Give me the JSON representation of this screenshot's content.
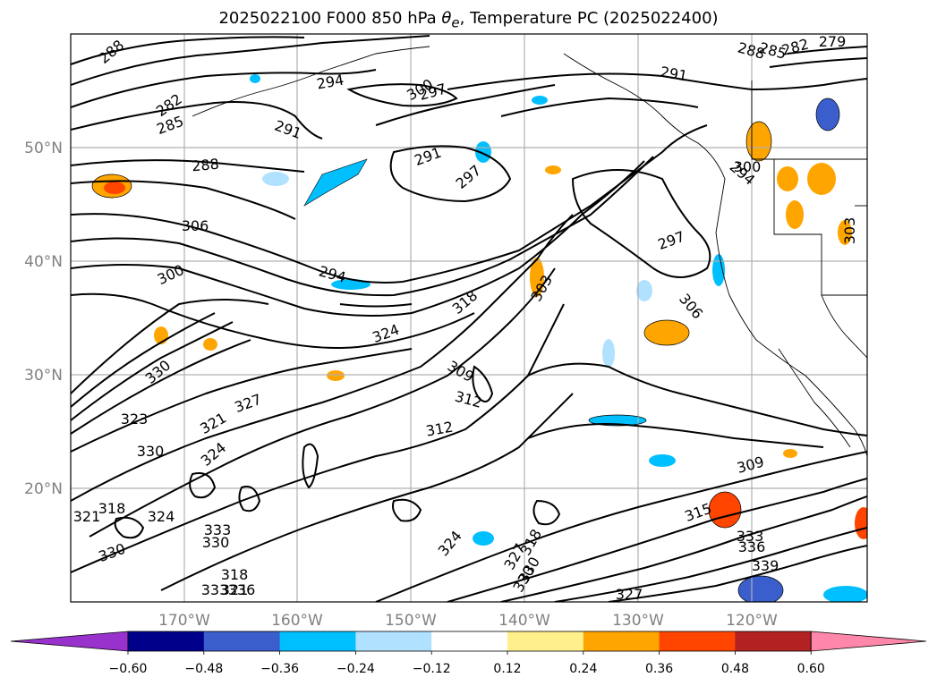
{
  "title": {
    "prefix": "2025022100 F000 850 hPa ",
    "theta": "θ",
    "sub": "e",
    "suffix": ", Temperature PC (2025022400)"
  },
  "lat_labels": [
    "50°N",
    "40°N",
    "30°N",
    "20°N"
  ],
  "lon_labels": [
    "170°W",
    "160°W",
    "150°W",
    "140°W",
    "130°W",
    "120°W"
  ],
  "colorbar": {
    "ticks": [
      "−0.60",
      "−0.48",
      "−0.36",
      "−0.24",
      "−0.12",
      "0.12",
      "0.24",
      "0.36",
      "0.48",
      "0.60"
    ],
    "colors": [
      "#9932cc",
      "#00008b",
      "#3a5fcd",
      "#00bfff",
      "#b0e2ff",
      "#ffffff",
      "#fff08c",
      "#ffa500",
      "#ff4500",
      "#b22222",
      "#ff88aa"
    ]
  },
  "contour_labels": [
    "288",
    "282",
    "285",
    "294",
    "300",
    "297",
    "291",
    "291",
    "288",
    "285",
    "279",
    "282",
    "288",
    "291",
    "294",
    "297",
    "306",
    "300",
    "297",
    "294",
    "300",
    "306",
    "303",
    "318",
    "324",
    "330",
    "309",
    "312",
    "312",
    "327",
    "321",
    "324",
    "323",
    "330",
    "318",
    "324",
    "333",
    "330",
    "321",
    "318",
    "330",
    "324",
    "318",
    "330",
    "333",
    "336",
    "339",
    "327",
    "315",
    "309",
    "303",
    "321",
    "327",
    "330",
    "333",
    "336"
  ]
}
